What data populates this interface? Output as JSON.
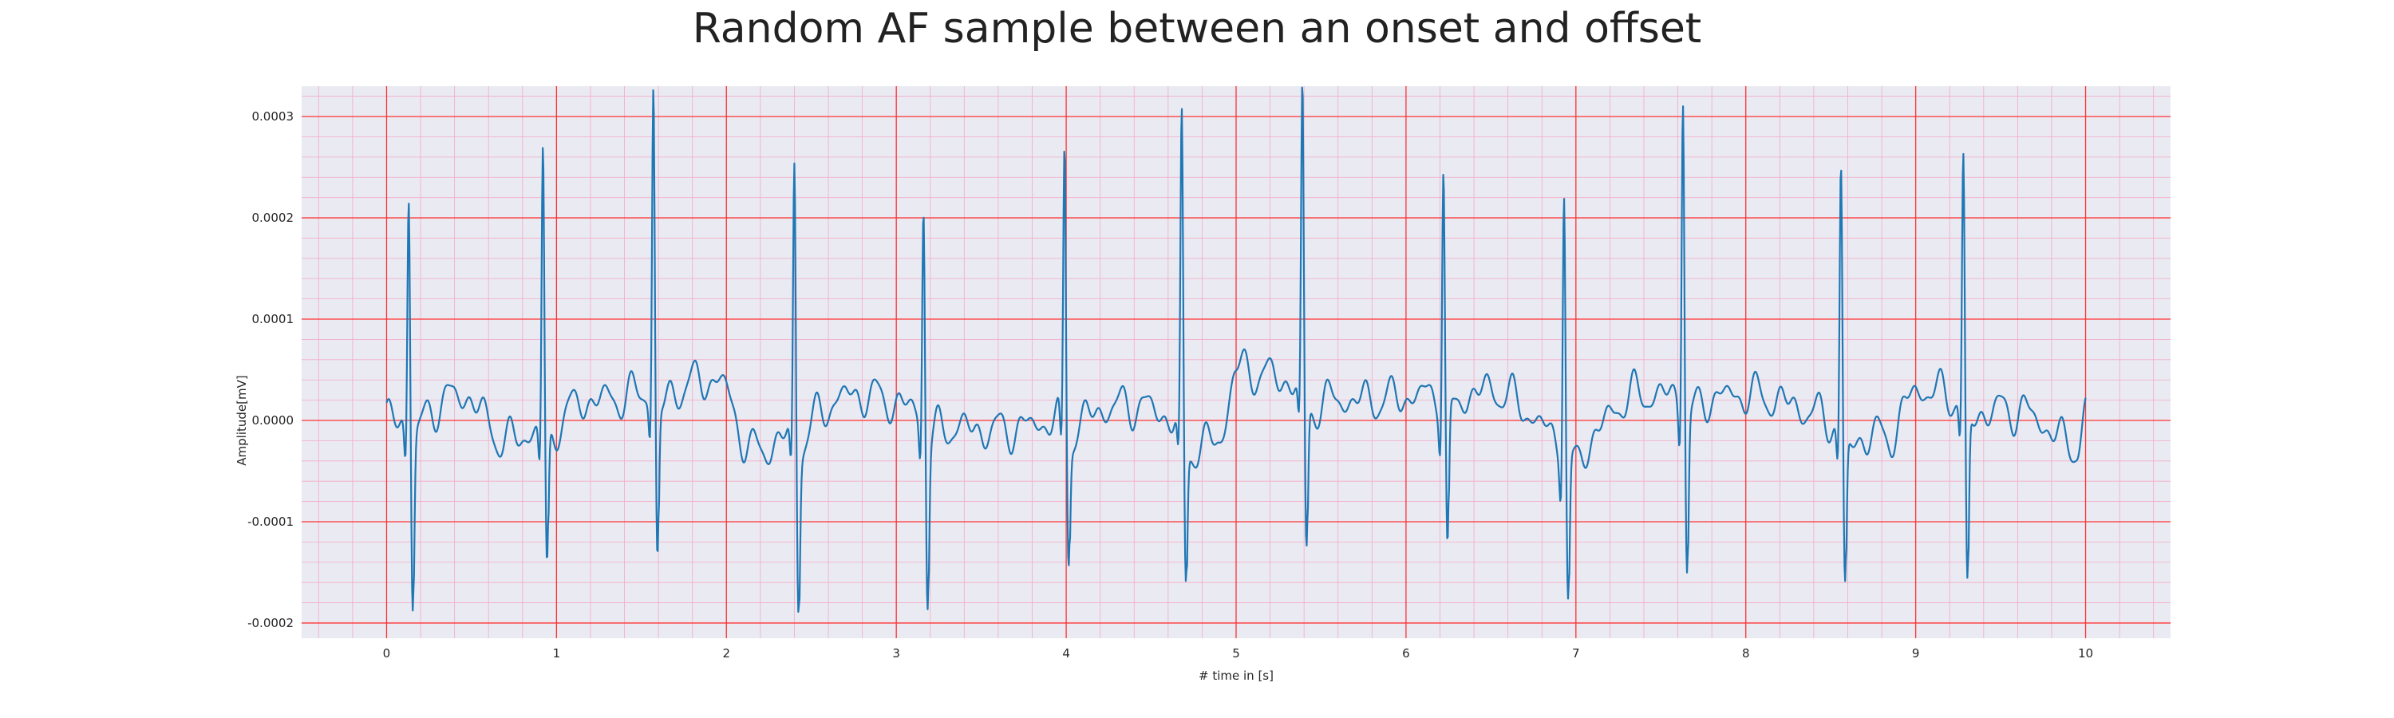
{
  "chart_data": {
    "type": "line",
    "title": "Random AF sample between an onset and offset",
    "xlabel": "# time in [s]",
    "ylabel": "Amplitude[mV]",
    "xlim": [
      -0.5,
      10.5
    ],
    "ylim": [
      -0.000215,
      0.00033
    ],
    "x_ticks": [
      0,
      1,
      2,
      3,
      4,
      5,
      6,
      7,
      8,
      9,
      10
    ],
    "x_tick_labels": [
      "0",
      "1",
      "2",
      "3",
      "4",
      "5",
      "6",
      "7",
      "8",
      "9",
      "10"
    ],
    "y_ticks": [
      -0.0002,
      -0.0001,
      0.0,
      0.0001,
      0.0002,
      0.0003
    ],
    "y_tick_labels": [
      "-0.0002",
      "-0.0001",
      "0.0000",
      "0.0001",
      "0.0002",
      "0.0003"
    ],
    "grid": true,
    "minor_grid": true,
    "legend": "none",
    "colors": {
      "line": "#1f77b4",
      "background": "#eaeaf2",
      "major_grid": "#ff3333",
      "minor_grid": "#f4aac4"
    },
    "series": [
      {
        "beats": [
          {
            "t": 0.13,
            "r": 0.000228,
            "s": -0.00019
          },
          {
            "t": 0.92,
            "r": 0.000276,
            "s": -0.000155
          },
          {
            "t": 1.57,
            "r": 0.000306,
            "s": -0.000172
          },
          {
            "t": 2.4,
            "r": 0.000267,
            "s": -0.000174
          },
          {
            "t": 3.16,
            "r": 0.000215,
            "s": -0.000181
          },
          {
            "t": 3.99,
            "r": 0.000271,
            "s": -0.000138
          },
          {
            "t": 4.68,
            "r": 0.000303,
            "s": -0.000158
          },
          {
            "t": 5.39,
            "r": 0.000295,
            "s": -0.000166
          },
          {
            "t": 6.22,
            "r": 0.000231,
            "s": -0.000165
          },
          {
            "t": 6.93,
            "r": 0.00026,
            "s": -0.000163
          },
          {
            "t": 7.63,
            "r": 0.000312,
            "s": -0.000173
          },
          {
            "t": 8.56,
            "r": 0.000258,
            "s": -0.000166
          },
          {
            "t": 9.28,
            "r": 0.00024,
            "s": -0.000193
          }
        ],
        "baseline_points": [
          {
            "x": 0.0,
            "y": 0.0
          },
          {
            "x": 0.45,
            "y": 2.5e-05
          },
          {
            "x": 0.7,
            "y": -2e-05
          },
          {
            "x": 1.2,
            "y": 2e-05
          },
          {
            "x": 1.95,
            "y": 4e-05
          },
          {
            "x": 2.15,
            "y": -3e-05
          },
          {
            "x": 2.75,
            "y": 2.5e-05
          },
          {
            "x": 3.55,
            "y": -1e-05
          },
          {
            "x": 4.4,
            "y": 1.5e-05
          },
          {
            "x": 4.9,
            "y": -2e-05
          },
          {
            "x": 5.0,
            "y": 5e-05
          },
          {
            "x": 5.7,
            "y": 2e-05
          },
          {
            "x": 6.5,
            "y": 3e-05
          },
          {
            "x": 7.0,
            "y": -2.5e-05
          },
          {
            "x": 7.35,
            "y": 2.5e-05
          },
          {
            "x": 8.0,
            "y": 2.5e-05
          },
          {
            "x": 8.85,
            "y": -1.5e-05
          },
          {
            "x": 9.0,
            "y": 3e-05
          },
          {
            "x": 9.6,
            "y": 1e-05
          },
          {
            "x": 9.95,
            "y": -2.5e-05
          },
          {
            "x": 10.0,
            "y": 5e-06
          }
        ],
        "x_range": [
          0,
          10
        ]
      }
    ]
  }
}
